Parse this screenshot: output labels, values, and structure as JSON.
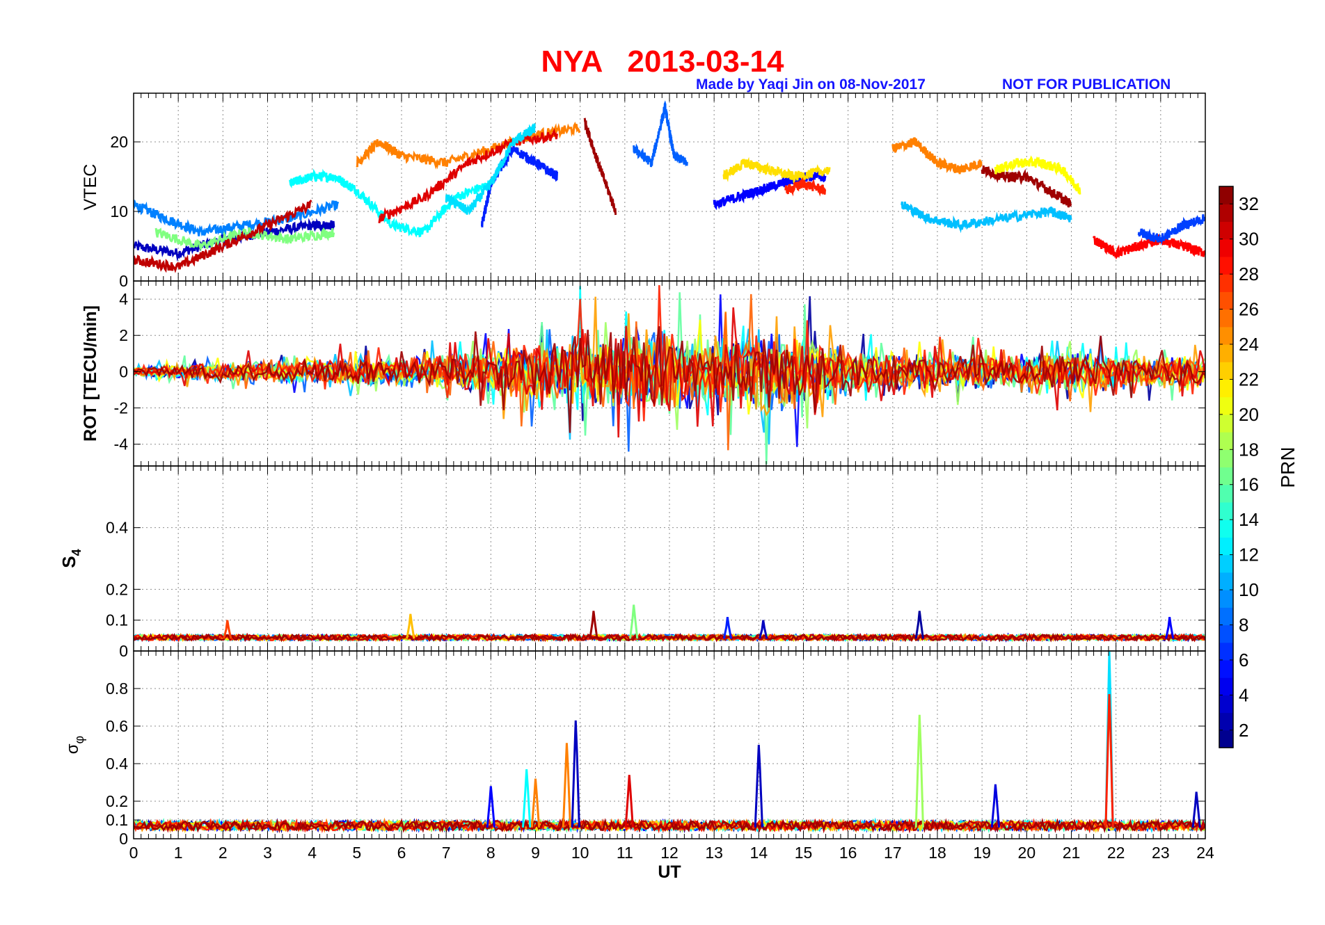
{
  "header": {
    "station": "NYA",
    "date": "2013-03-14",
    "made_by": "Made by Yaqi Jin on 08-Nov-2017",
    "notice": "NOT FOR PUBLICATION"
  },
  "colors": {
    "title": "#ff0000",
    "credit": "#1515ff"
  },
  "chart_data": [
    {
      "type": "line",
      "ylabel": "VTEC",
      "xlim": [
        0,
        24
      ],
      "ylim": [
        0,
        27
      ],
      "yticks": [
        0,
        10,
        20
      ],
      "grid": true,
      "series_note": "one trace per PRN, coloured by PRN",
      "series": [
        {
          "prn": 3,
          "x": [
            0,
            1,
            2,
            3,
            4,
            4.5
          ],
          "y": [
            5,
            4,
            6,
            7,
            8,
            8
          ]
        },
        {
          "prn": 9,
          "x": [
            0,
            0.7,
            1.5,
            2.5,
            3.5,
            4.6
          ],
          "y": [
            11,
            9,
            7,
            8,
            9,
            11
          ]
        },
        {
          "prn": 13,
          "x": [
            3.5,
            4,
            4.5,
            5,
            5.8,
            6.5,
            7.2,
            8
          ],
          "y": [
            14,
            15,
            15,
            13,
            8,
            7,
            12,
            14
          ]
        },
        {
          "prn": 17,
          "x": [
            0.5,
            1.5,
            2.5,
            3.5,
            4.5
          ],
          "y": [
            7,
            5,
            7,
            6,
            7
          ]
        },
        {
          "prn": 25,
          "x": [
            5,
            5.5,
            6,
            7,
            8,
            9,
            10
          ],
          "y": [
            17,
            20,
            18,
            17,
            19,
            21,
            22
          ]
        },
        {
          "prn": 31,
          "x": [
            0,
            1,
            2,
            3,
            4
          ],
          "y": [
            3,
            2,
            5,
            8,
            11
          ]
        },
        {
          "prn": 30,
          "x": [
            5.5,
            6.5,
            7.5,
            8.5,
            9.5
          ],
          "y": [
            9,
            12,
            17,
            20,
            21
          ]
        },
        {
          "prn": 6,
          "x": [
            7.8,
            8,
            8.5,
            9,
            9.5
          ],
          "y": [
            8,
            14,
            19,
            17,
            15
          ]
        },
        {
          "prn": 12,
          "x": [
            7,
            7.5,
            8,
            8.5,
            9
          ],
          "y": [
            12,
            10,
            14,
            20,
            22
          ]
        },
        {
          "prn": 8,
          "x": [
            11.2,
            11.6,
            11.9,
            12.1,
            12.4
          ],
          "y": [
            19,
            17,
            25,
            18,
            17
          ]
        },
        {
          "prn": 32,
          "x": [
            10.1,
            10.4,
            10.8
          ],
          "y": [
            23,
            17,
            10
          ]
        },
        {
          "prn": 5,
          "x": [
            13,
            13.5,
            14,
            14.5,
            15,
            15.5
          ],
          "y": [
            11,
            12,
            13,
            14,
            15,
            15
          ]
        },
        {
          "prn": 22,
          "x": [
            13.2,
            13.7,
            14.2,
            14.8,
            15.6
          ],
          "y": [
            15,
            17,
            16,
            15,
            16
          ]
        },
        {
          "prn": 28,
          "x": [
            14.6,
            15,
            15.5
          ],
          "y": [
            13,
            14,
            13
          ]
        },
        {
          "prn": 25,
          "x": [
            17,
            17.5,
            18,
            18.5,
            19
          ],
          "y": [
            19,
            20,
            17,
            16,
            17
          ]
        },
        {
          "prn": 32,
          "x": [
            19,
            19.5,
            20,
            20.5,
            21
          ],
          "y": [
            16,
            15,
            15,
            13,
            11
          ]
        },
        {
          "prn": 21,
          "x": [
            19.3,
            19.8,
            20.3,
            20.8,
            21.2
          ],
          "y": [
            16,
            17,
            17,
            16,
            13
          ]
        },
        {
          "prn": 11,
          "x": [
            17.2,
            17.8,
            18.5,
            19.5,
            20.5,
            21
          ],
          "y": [
            11,
            9,
            8,
            9,
            10,
            9
          ]
        },
        {
          "prn": 29,
          "x": [
            21.5,
            22,
            22.5,
            23,
            23.5,
            24
          ],
          "y": [
            6,
            4,
            5,
            6,
            5,
            4
          ]
        },
        {
          "prn": 7,
          "x": [
            22.5,
            23,
            23.5,
            24
          ],
          "y": [
            7,
            6,
            8,
            9
          ]
        }
      ]
    },
    {
      "type": "line",
      "ylabel": "ROT [TECU/min]",
      "xlim": [
        0,
        24
      ],
      "ylim": [
        -5.2,
        5
      ],
      "yticks": [
        -4,
        -2,
        0,
        2,
        4
      ],
      "grid": true,
      "series_note": "rate of TEC, noisy traces per PRN",
      "envelope": {
        "x": [
          0,
          2,
          4,
          6,
          7,
          8,
          9,
          10,
          11,
          12,
          13,
          14,
          15,
          16,
          17,
          18,
          19,
          20,
          21,
          22,
          23,
          24
        ],
        "amplitude": [
          0.4,
          0.8,
          1.0,
          1.2,
          1.4,
          2.0,
          2.6,
          3.2,
          3.0,
          3.4,
          2.8,
          3.6,
          3.2,
          1.8,
          1.6,
          1.5,
          1.4,
          1.3,
          1.8,
          1.4,
          1.3,
          1.2
        ]
      }
    },
    {
      "type": "line",
      "ylabel": "S4",
      "xlim": [
        0,
        24
      ],
      "ylim": [
        0,
        0.6
      ],
      "yticks": [
        0,
        0.1,
        0.2,
        0.4
      ],
      "grid": true,
      "baseline": 0.04,
      "peaks": [
        {
          "x": 2.1,
          "y": 0.1,
          "prn": 27
        },
        {
          "x": 6.2,
          "y": 0.12,
          "prn": 23
        },
        {
          "x": 10.3,
          "y": 0.13,
          "prn": 32
        },
        {
          "x": 11.2,
          "y": 0.15,
          "prn": 17
        },
        {
          "x": 13.3,
          "y": 0.11,
          "prn": 6
        },
        {
          "x": 14.1,
          "y": 0.1,
          "prn": 3
        },
        {
          "x": 17.6,
          "y": 0.13,
          "prn": 2
        },
        {
          "x": 23.2,
          "y": 0.11,
          "prn": 5
        }
      ]
    },
    {
      "type": "line",
      "ylabel": "σφ",
      "xlim": [
        0,
        24
      ],
      "ylim": [
        0,
        1
      ],
      "yticks": [
        0,
        0.1,
        0.2,
        0.4,
        0.6,
        0.8
      ],
      "xticks": [
        0,
        1,
        2,
        3,
        4,
        5,
        6,
        7,
        8,
        9,
        10,
        11,
        12,
        13,
        14,
        15,
        16,
        17,
        18,
        19,
        20,
        21,
        22,
        23,
        24
      ],
      "xlabel": "UT",
      "grid": true,
      "baseline": 0.06,
      "peaks": [
        {
          "x": 8.0,
          "y": 0.28,
          "prn": 5
        },
        {
          "x": 8.8,
          "y": 0.37,
          "prn": 13
        },
        {
          "x": 9.0,
          "y": 0.32,
          "prn": 25
        },
        {
          "x": 9.7,
          "y": 0.51,
          "prn": 25
        },
        {
          "x": 9.9,
          "y": 0.63,
          "prn": 3
        },
        {
          "x": 11.1,
          "y": 0.34,
          "prn": 30
        },
        {
          "x": 14.0,
          "y": 0.5,
          "prn": 3
        },
        {
          "x": 17.6,
          "y": 0.66,
          "prn": 18
        },
        {
          "x": 19.3,
          "y": 0.29,
          "prn": 4
        },
        {
          "x": 21.85,
          "y": 1.0,
          "prn": 12
        },
        {
          "x": 21.85,
          "y": 0.77,
          "prn": 28
        },
        {
          "x": 23.8,
          "y": 0.25,
          "prn": 3
        }
      ]
    }
  ],
  "colorbar": {
    "label": "PRN",
    "range": [
      1,
      33
    ],
    "ticks": [
      2,
      4,
      6,
      8,
      10,
      12,
      14,
      16,
      18,
      20,
      22,
      24,
      26,
      28,
      30,
      32
    ]
  }
}
